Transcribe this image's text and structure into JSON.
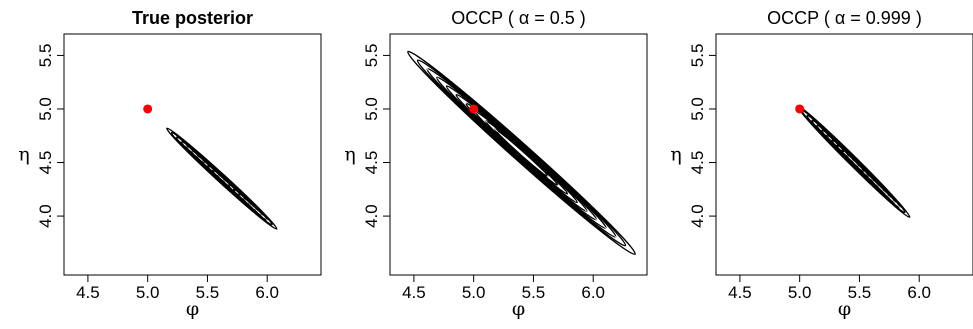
{
  "colors": {
    "truth_point": "#ff0000",
    "contour": "#000000",
    "background": "#ffffff"
  },
  "chart_data": [
    {
      "type": "contour",
      "title": "True posterior",
      "title_bold": true,
      "xlabel": "φ",
      "ylabel": "η",
      "xlim": [
        4.3,
        6.45
      ],
      "ylim": [
        3.45,
        5.7
      ],
      "x_ticks": [
        4.5,
        5.0,
        5.5,
        6.0
      ],
      "x_tick_labels": [
        "4.5",
        "5.0",
        "5.5",
        "6.0"
      ],
      "y_ticks": [
        4.0,
        4.5,
        5.0,
        5.5
      ],
      "y_tick_labels": [
        "4.0",
        "4.5",
        "5.0",
        "5.5"
      ],
      "grid": false,
      "true_point": {
        "x": 5.0,
        "y": 5.0
      },
      "contour_region": {
        "center": [
          5.62,
          4.35
        ],
        "endpoints": [
          [
            5.16,
            4.82
          ],
          [
            6.08,
            3.88
          ]
        ],
        "levels": 10
      }
    },
    {
      "type": "contour",
      "title": "OCCP ( α = 0.5 )",
      "title_bold": false,
      "xlabel": "φ",
      "ylabel": "η",
      "xlim": [
        4.3,
        6.45
      ],
      "ylim": [
        3.45,
        5.7
      ],
      "x_ticks": [
        4.5,
        5.0,
        5.5,
        6.0
      ],
      "x_tick_labels": [
        "4.5",
        "5.0",
        "5.5",
        "6.0"
      ],
      "y_ticks": [
        4.0,
        4.5,
        5.0,
        5.5
      ],
      "y_tick_labels": [
        "4.0",
        "4.5",
        "5.0",
        "5.5"
      ],
      "grid": false,
      "true_point": {
        "x": 5.0,
        "y": 5.0
      },
      "contour_region": {
        "center": [
          5.4,
          4.59
        ],
        "endpoints": [
          [
            4.45,
            5.53
          ],
          [
            6.35,
            3.64
          ]
        ],
        "levels": 10
      }
    },
    {
      "type": "contour",
      "title": "OCCP ( α = 0.999 )",
      "title_bold": false,
      "xlabel": "φ",
      "ylabel": "η",
      "xlim": [
        4.3,
        6.45
      ],
      "ylim": [
        3.45,
        5.7
      ],
      "x_ticks": [
        4.5,
        5.0,
        5.5,
        6.0
      ],
      "x_tick_labels": [
        "4.5",
        "5.0",
        "5.5",
        "6.0"
      ],
      "y_ticks": [
        4.0,
        4.5,
        5.0,
        5.5
      ],
      "y_tick_labels": [
        "4.0",
        "4.5",
        "5.0",
        "5.5"
      ],
      "grid": false,
      "true_point": {
        "x": 5.0,
        "y": 5.0
      },
      "contour_region": {
        "center": [
          5.45,
          4.51
        ],
        "endpoints": [
          [
            4.98,
            5.03
          ],
          [
            5.92,
            3.99
          ]
        ],
        "levels": 10
      }
    }
  ]
}
